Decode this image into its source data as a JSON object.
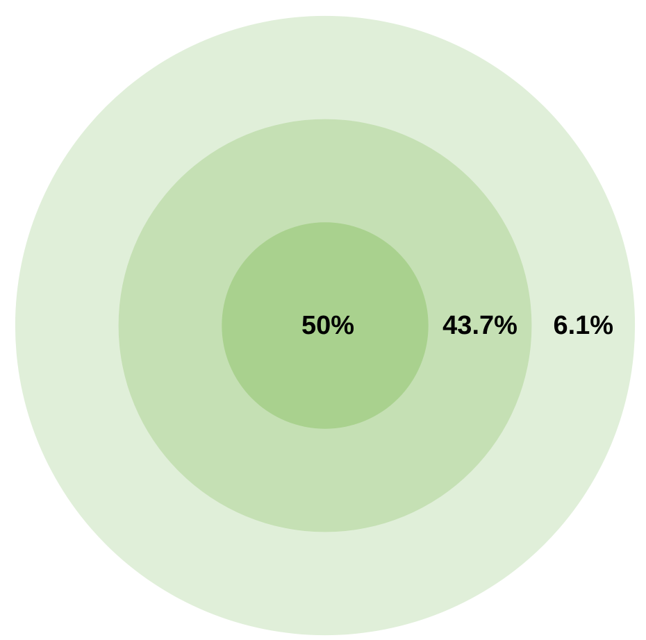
{
  "chart_data": {
    "type": "concentric",
    "values": [
      50,
      43.7,
      6.1
    ],
    "value_labels": [
      "50%",
      "43.7%",
      "6.1%"
    ],
    "colors": [
      "#a9d18e",
      "#c5e0b4",
      "#e0efd9"
    ]
  }
}
